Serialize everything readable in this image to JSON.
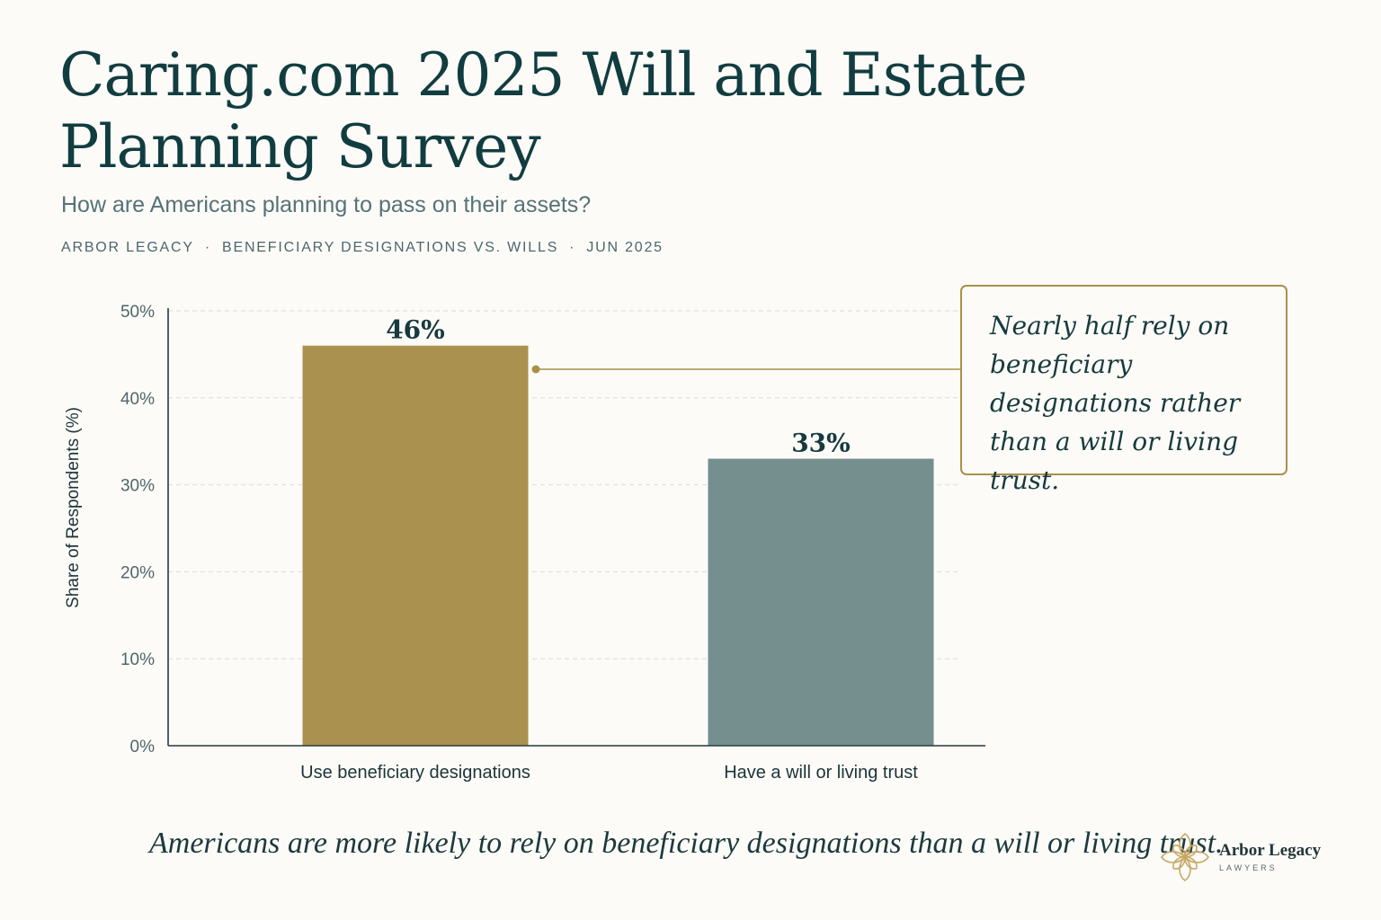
{
  "header": {
    "title": "Caring.com 2025 Will and Estate Planning Survey",
    "subtitle": "How are Americans planning to pass on their assets?",
    "meta": [
      "ARBOR LEGACY",
      "BENEFICIARY DESIGNATIONS VS. WILLS",
      "JUN 2025"
    ]
  },
  "chart_data": {
    "type": "bar",
    "title": "Caring.com 2025 Will and Estate Planning Survey",
    "subtitle": "How are Americans planning to pass on their assets?",
    "categories": [
      "Use beneficiary designations",
      "Have a will or living trust"
    ],
    "values": [
      46,
      33
    ],
    "value_labels": [
      "46%",
      "33%"
    ],
    "ylabel": "Share of Respondents (%)",
    "xlabel": "",
    "ylim": [
      0,
      50
    ],
    "yticks": [
      0,
      10,
      20,
      30,
      40,
      50
    ],
    "ytick_labels": [
      "0%",
      "10%",
      "20%",
      "30%",
      "40%",
      "50%"
    ],
    "grid": true,
    "colors": [
      "#ab914f",
      "#758e8e"
    ],
    "annotation": {
      "text": "Nearly half rely on beneficiary designations rather than a will or living trust.",
      "target_category": "Use beneficiary designations",
      "color": "#aa9049"
    }
  },
  "footnote": "Americans are more likely to rely on beneficiary designations than a will or living trust.",
  "brand": {
    "name": "Arbor Legacy",
    "tagline": "LAWYERS",
    "logo_icon": "flower-logo-icon",
    "accent": "#c6a865"
  }
}
